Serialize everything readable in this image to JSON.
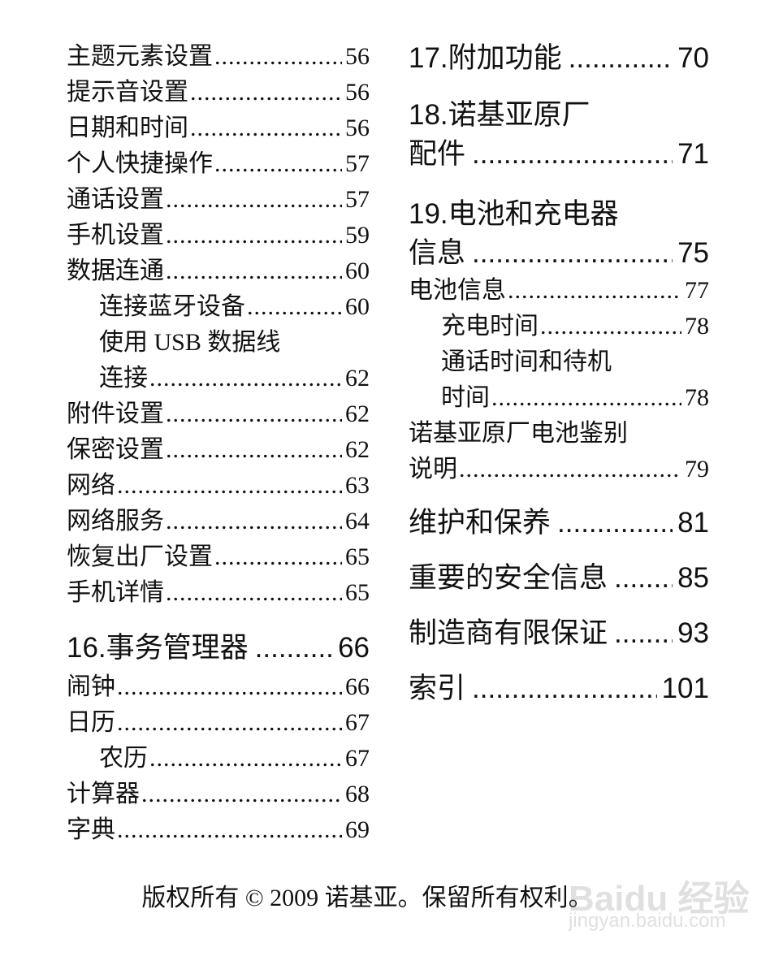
{
  "left": [
    {
      "label": "主题元素设置",
      "page": "56"
    },
    {
      "label": "提示音设置",
      "page": "56"
    },
    {
      "label": "日期和时间",
      "page": "56"
    },
    {
      "label": "个人快捷操作",
      "page": "57"
    },
    {
      "label": "通话设置",
      "page": "57"
    },
    {
      "label": "手机设置",
      "page": "59"
    },
    {
      "label": "数据连通",
      "page": "60"
    },
    {
      "label": "连接蓝牙设备",
      "page": "60"
    },
    {
      "label": "使用 USB 数据线",
      "page": ""
    },
    {
      "label": "连接",
      "page": "62"
    },
    {
      "label": "附件设置",
      "page": "62"
    },
    {
      "label": "保密设置",
      "page": "62"
    },
    {
      "label": "网络",
      "page": "63"
    },
    {
      "label": "网络服务",
      "page": "64"
    },
    {
      "label": "恢复出厂设置",
      "page": "65"
    },
    {
      "label": "手机详情",
      "page": "65"
    },
    {
      "label": "16.事务管理器",
      "page": "66"
    },
    {
      "label": "闹钟",
      "page": "66"
    },
    {
      "label": "日历",
      "page": "67"
    },
    {
      "label": "农历",
      "page": "67"
    },
    {
      "label": "计算器",
      "page": "68"
    },
    {
      "label": "字典",
      "page": "69"
    }
  ],
  "right": [
    {
      "label": "17.附加功能",
      "page": "70"
    },
    {
      "label": "18.诺基亚原厂",
      "page": ""
    },
    {
      "label": "配件",
      "page": "71"
    },
    {
      "label": "19.电池和充电器",
      "page": ""
    },
    {
      "label": "信息",
      "page": "75"
    },
    {
      "label": "电池信息",
      "page": "77"
    },
    {
      "label": "充电时间",
      "page": "78"
    },
    {
      "label": "通话时间和待机",
      "page": ""
    },
    {
      "label": "时间",
      "page": "78"
    },
    {
      "label": "诺基亚原厂电池鉴别",
      "page": ""
    },
    {
      "label": "说明",
      "page": "79"
    },
    {
      "label": "维护和保养",
      "page": "81"
    },
    {
      "label": "重要的安全信息",
      "page": "85"
    },
    {
      "label": "制造商有限保证",
      "page": "93"
    },
    {
      "label": "索引",
      "page": "101"
    }
  ],
  "footer": "版权所有 © 2009 诺基亚。保留所有权利。",
  "watermark": {
    "logo": "Baidu 经验",
    "url": "jingyan.baidu.com"
  }
}
